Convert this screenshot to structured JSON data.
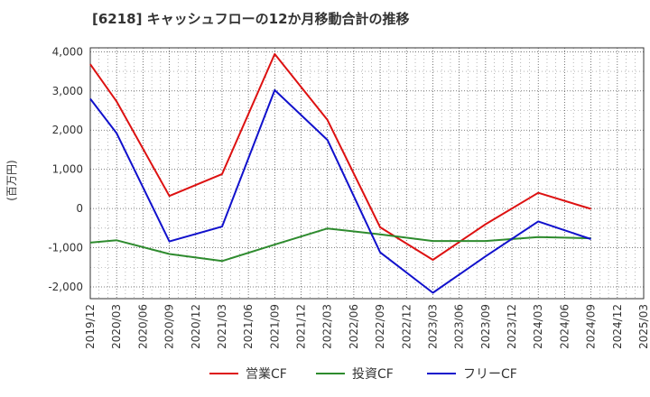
{
  "chart_data": {
    "type": "line",
    "title": "[6218]  キャッシュフローの12か月移動合計の推移",
    "ylabel": "(百万円)",
    "xlabel": "",
    "ylim": [
      -2300,
      4100
    ],
    "yticks": [
      4000,
      3000,
      2000,
      1000,
      0,
      -1000,
      -2000
    ],
    "ytick_labels": [
      "4,000",
      "3,000",
      "2,000",
      "1,000",
      "0",
      "-1,000",
      "-2,000"
    ],
    "categories": [
      "2019/12",
      "2020/03",
      "2020/06",
      "2020/09",
      "2020/12",
      "2021/03",
      "2021/06",
      "2021/09",
      "2021/12",
      "2022/03",
      "2022/06",
      "2022/09",
      "2022/12",
      "2023/03",
      "2023/06",
      "2023/09",
      "2023/12",
      "2024/03",
      "2024/06",
      "2024/09",
      "2024/12",
      "2025/03"
    ],
    "grid": true,
    "legend_position": "bottom",
    "series": [
      {
        "name": "営業CF",
        "color": "#dd1111",
        "values": [
          3680,
          2730,
          null,
          320,
          null,
          880,
          null,
          3940,
          null,
          2260,
          null,
          -480,
          null,
          -1310,
          null,
          -400,
          null,
          400,
          null,
          -10,
          null,
          null
        ]
      },
      {
        "name": "投資CF",
        "color": "#2e8b2e",
        "values": [
          -870,
          -810,
          null,
          -1160,
          null,
          -1340,
          null,
          -920,
          null,
          -510,
          null,
          -660,
          null,
          -830,
          null,
          -830,
          null,
          -730,
          null,
          -760,
          null,
          null
        ]
      },
      {
        "name": "フリーCF",
        "color": "#1111cc",
        "values": [
          2800,
          1920,
          null,
          -840,
          null,
          -460,
          null,
          3020,
          null,
          1750,
          null,
          -1120,
          null,
          -2150,
          null,
          -1220,
          null,
          -330,
          null,
          -780,
          null,
          null
        ]
      }
    ]
  }
}
